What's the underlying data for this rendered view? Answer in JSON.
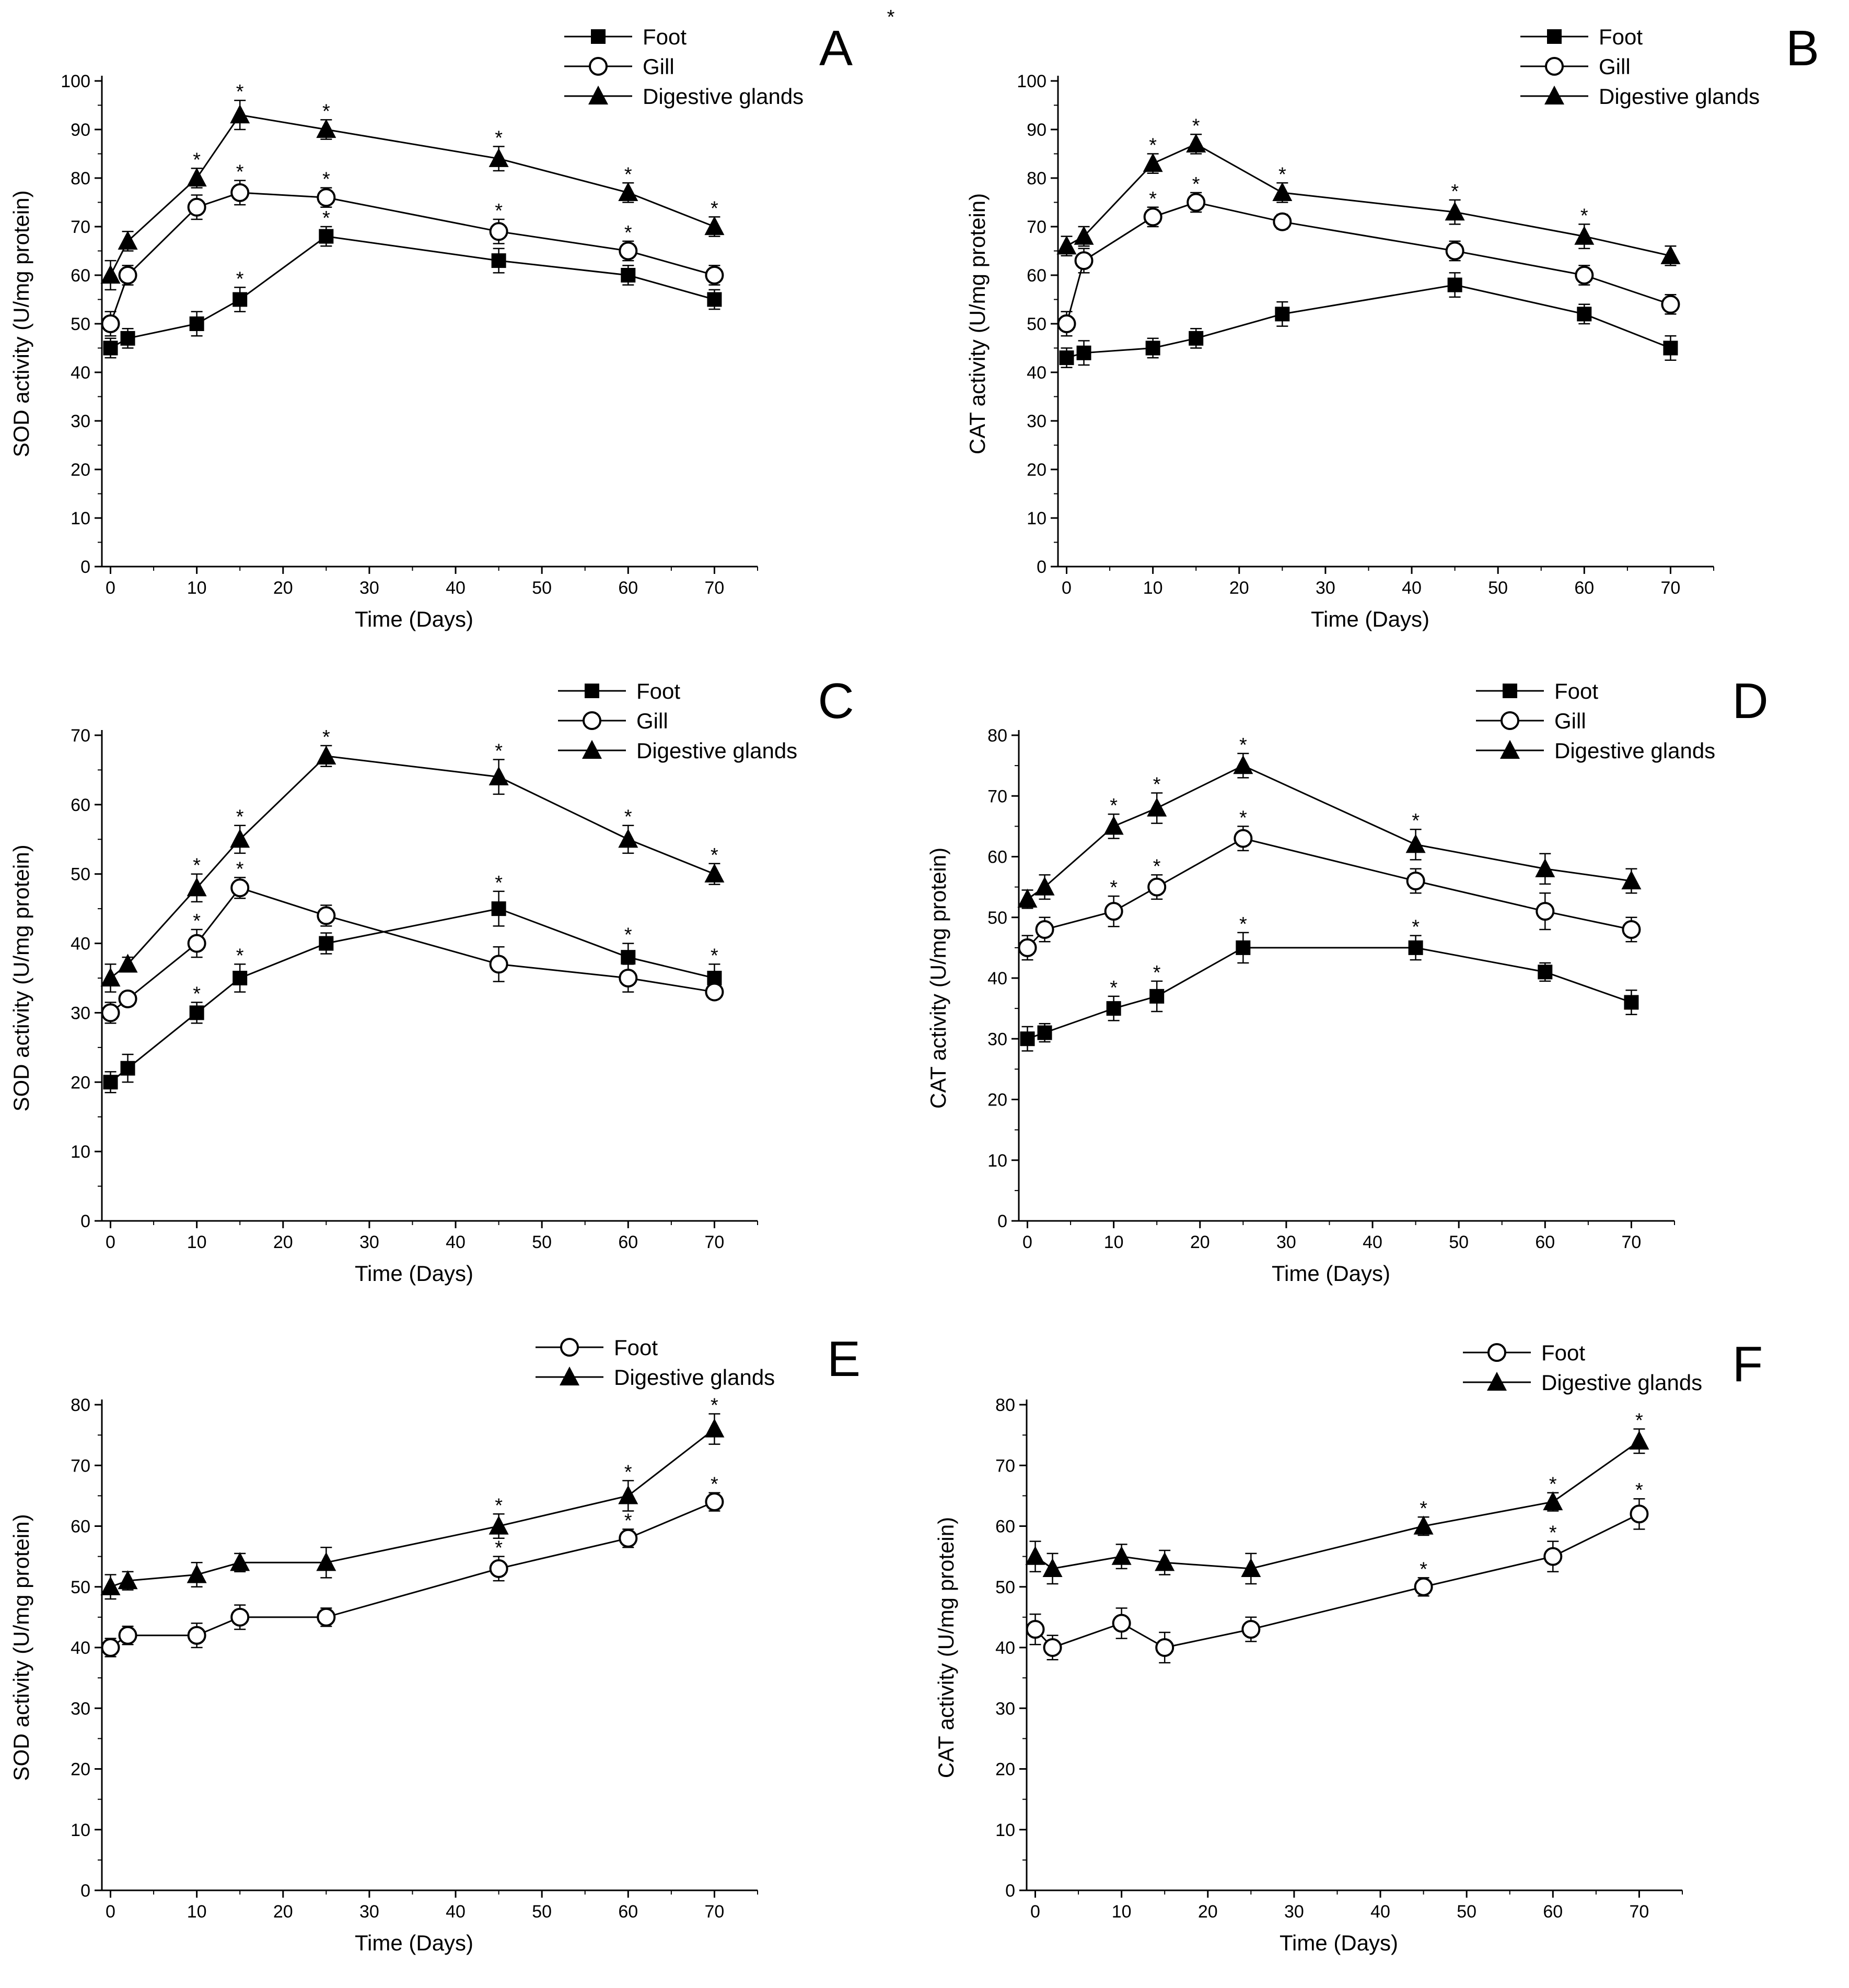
{
  "chart_data": [
    {
      "type": "line",
      "panel_label": "A",
      "extra_marks": [
        "*"
      ],
      "xlabel": "Time (Days)",
      "ylabel": "SOD activity (U/mg protein)",
      "xlim": [
        -1,
        75
      ],
      "ylim": [
        0,
        100
      ],
      "xticks": [
        0,
        10,
        20,
        30,
        40,
        50,
        60,
        70
      ],
      "yticks": [
        0,
        10,
        20,
        30,
        40,
        50,
        60,
        70,
        80,
        90,
        100
      ],
      "legend_position": "top-right",
      "x": [
        0,
        2,
        10,
        15,
        25,
        45,
        60,
        70
      ],
      "series": [
        {
          "name": "Foot",
          "marker": "square-filled",
          "values": [
            45,
            47,
            50,
            55,
            68,
            63,
            60,
            55
          ],
          "errors": [
            2,
            2,
            2.5,
            2.5,
            2,
            2.5,
            2,
            2
          ],
          "sig": [
            0,
            0,
            0,
            1,
            1,
            0,
            0,
            0
          ]
        },
        {
          "name": "Gill",
          "marker": "circle-open",
          "values": [
            50,
            60,
            74,
            77,
            76,
            69,
            65,
            60
          ],
          "errors": [
            2.5,
            2,
            2.5,
            2.5,
            2,
            2.5,
            2,
            2
          ],
          "sig": [
            0,
            0,
            0,
            1,
            1,
            1,
            1,
            0
          ]
        },
        {
          "name": "Digestive glands",
          "marker": "triangle-filled",
          "values": [
            60,
            67,
            80,
            93,
            90,
            84,
            77,
            70
          ],
          "errors": [
            3,
            2,
            2,
            3,
            2,
            2.5,
            2,
            2
          ],
          "sig": [
            0,
            0,
            1,
            1,
            1,
            1,
            1,
            1
          ]
        }
      ]
    },
    {
      "type": "line",
      "panel_label": "B",
      "xlabel": "Time (Days)",
      "ylabel": "CAT activity (U/mg protein)",
      "xlim": [
        -1,
        75
      ],
      "ylim": [
        0,
        100
      ],
      "xticks": [
        0,
        10,
        20,
        30,
        40,
        50,
        60,
        70
      ],
      "yticks": [
        0,
        10,
        20,
        30,
        40,
        50,
        60,
        70,
        80,
        90,
        100
      ],
      "legend_position": "top-right",
      "x": [
        0,
        2,
        10,
        15,
        25,
        45,
        60,
        70
      ],
      "series": [
        {
          "name": "Foot",
          "marker": "square-filled",
          "values": [
            43,
            44,
            45,
            47,
            52,
            58,
            52,
            45
          ],
          "errors": [
            2,
            2.5,
            2,
            2,
            2.5,
            2.5,
            2,
            2.5
          ],
          "sig": [
            0,
            0,
            0,
            0,
            0,
            0,
            0,
            0
          ]
        },
        {
          "name": "Gill",
          "marker": "circle-open",
          "values": [
            50,
            63,
            72,
            75,
            71,
            65,
            60,
            54
          ],
          "errors": [
            2.5,
            2.5,
            2,
            2,
            1.5,
            2,
            2,
            2
          ],
          "sig": [
            0,
            0,
            1,
            1,
            0,
            0,
            0,
            0
          ]
        },
        {
          "name": "Digestive glands",
          "marker": "triangle-filled",
          "values": [
            66,
            68,
            83,
            87,
            77,
            73,
            68,
            64
          ],
          "errors": [
            2,
            2,
            2,
            2,
            2,
            2.5,
            2.5,
            2
          ],
          "sig": [
            0,
            0,
            1,
            1,
            1,
            1,
            1,
            0
          ]
        }
      ]
    },
    {
      "type": "line",
      "panel_label": "C",
      "xlabel": "Time (Days)",
      "ylabel": "SOD activity (U/mg protein)",
      "xlim": [
        -1,
        75
      ],
      "ylim": [
        0,
        70
      ],
      "xticks": [
        0,
        10,
        20,
        30,
        40,
        50,
        60,
        70
      ],
      "yticks": [
        0,
        10,
        20,
        30,
        40,
        50,
        60,
        70
      ],
      "legend_position": "top-right",
      "x": [
        0,
        2,
        10,
        15,
        25,
        45,
        60,
        70
      ],
      "series": [
        {
          "name": "Foot",
          "marker": "square-filled",
          "values": [
            20,
            22,
            30,
            35,
            40,
            45,
            38,
            35
          ],
          "errors": [
            1.5,
            2,
            1.5,
            2,
            1.5,
            2.5,
            2,
            2
          ],
          "sig": [
            0,
            0,
            1,
            1,
            0,
            1,
            1,
            1
          ]
        },
        {
          "name": "Gill",
          "marker": "circle-open",
          "values": [
            30,
            32,
            40,
            48,
            44,
            37,
            35,
            33
          ],
          "errors": [
            1.5,
            1,
            2,
            1.5,
            1.5,
            2.5,
            2,
            1
          ],
          "sig": [
            0,
            0,
            1,
            1,
            0,
            0,
            0,
            0
          ]
        },
        {
          "name": "Digestive glands",
          "marker": "triangle-filled",
          "values": [
            35,
            37,
            48,
            55,
            67,
            64,
            55,
            50
          ],
          "errors": [
            2,
            1,
            2,
            2,
            1.5,
            2.5,
            2,
            1.5
          ],
          "sig": [
            0,
            0,
            1,
            1,
            1,
            1,
            1,
            1
          ]
        }
      ]
    },
    {
      "type": "line",
      "panel_label": "D",
      "xlabel": "Time (Days)",
      "ylabel": "CAT activity (U/mg protein)",
      "xlim": [
        -1,
        75
      ],
      "ylim": [
        0,
        80
      ],
      "xticks": [
        0,
        10,
        20,
        30,
        40,
        50,
        60,
        70
      ],
      "yticks": [
        0,
        10,
        20,
        30,
        40,
        50,
        60,
        70,
        80
      ],
      "legend_position": "top-right",
      "x": [
        0,
        2,
        10,
        15,
        25,
        45,
        60,
        70
      ],
      "series": [
        {
          "name": "Foot",
          "marker": "square-filled",
          "values": [
            30,
            31,
            35,
            37,
            45,
            45,
            41,
            36
          ],
          "errors": [
            2,
            1.5,
            2,
            2.5,
            2.5,
            2,
            1.5,
            2
          ],
          "sig": [
            0,
            0,
            1,
            1,
            1,
            1,
            0,
            0
          ]
        },
        {
          "name": "Gill",
          "marker": "circle-open",
          "values": [
            45,
            48,
            51,
            55,
            63,
            56,
            51,
            48
          ],
          "errors": [
            2,
            2,
            2.5,
            2,
            2,
            2,
            3,
            2
          ],
          "sig": [
            0,
            0,
            1,
            1,
            1,
            0,
            0,
            0
          ]
        },
        {
          "name": "Digestive glands",
          "marker": "triangle-filled",
          "values": [
            53,
            55,
            65,
            68,
            75,
            62,
            58,
            56
          ],
          "errors": [
            1.5,
            2,
            2,
            2.5,
            2,
            2.5,
            2.5,
            2
          ],
          "sig": [
            0,
            0,
            1,
            1,
            1,
            1,
            0,
            0
          ]
        }
      ]
    },
    {
      "type": "line",
      "panel_label": "E",
      "xlabel": "Time (Days)",
      "ylabel": "SOD activity (U/mg protein)",
      "xlim": [
        -1,
        75
      ],
      "ylim": [
        0,
        80
      ],
      "xticks": [
        0,
        10,
        20,
        30,
        40,
        50,
        60,
        70
      ],
      "yticks": [
        0,
        10,
        20,
        30,
        40,
        50,
        60,
        70,
        80
      ],
      "legend_position": "top-right",
      "x": [
        0,
        2,
        10,
        15,
        25,
        45,
        60,
        70
      ],
      "series": [
        {
          "name": "Foot",
          "marker": "circle-open",
          "values": [
            40,
            42,
            42,
            45,
            45,
            53,
            58,
            64
          ],
          "errors": [
            1.5,
            1.5,
            2,
            2,
            1.5,
            2,
            1.5,
            1.5
          ],
          "sig": [
            0,
            0,
            0,
            0,
            0,
            1,
            1,
            1
          ]
        },
        {
          "name": "Digestive glands",
          "marker": "triangle-filled",
          "values": [
            50,
            51,
            52,
            54,
            54,
            60,
            65,
            76
          ],
          "errors": [
            2,
            1.5,
            2,
            1.5,
            2.5,
            2,
            2.5,
            2.5
          ],
          "sig": [
            0,
            0,
            0,
            0,
            0,
            1,
            1,
            1
          ]
        }
      ]
    },
    {
      "type": "line",
      "panel_label": "F",
      "xlabel": "Time (Days)",
      "ylabel": "CAT activity (U/mg protein)",
      "xlim": [
        -1,
        75
      ],
      "ylim": [
        0,
        80
      ],
      "xticks": [
        0,
        10,
        20,
        30,
        40,
        50,
        60,
        70
      ],
      "yticks": [
        0,
        10,
        20,
        30,
        40,
        50,
        60,
        70,
        80
      ],
      "legend_position": "top-right",
      "x": [
        0,
        2,
        10,
        15,
        25,
        45,
        60,
        70
      ],
      "series": [
        {
          "name": "Foot",
          "marker": "circle-open",
          "values": [
            43,
            40,
            44,
            40,
            43,
            50,
            55,
            62
          ],
          "errors": [
            2.5,
            2,
            2.5,
            2.5,
            2,
            1.5,
            2.5,
            2.5
          ],
          "sig": [
            0,
            0,
            0,
            0,
            0,
            1,
            1,
            1
          ]
        },
        {
          "name": "Digestive glands",
          "marker": "triangle-filled",
          "values": [
            55,
            53,
            55,
            54,
            53,
            60,
            64,
            74
          ],
          "errors": [
            2.5,
            2.5,
            2,
            2,
            2.5,
            1.5,
            1.5,
            2
          ],
          "sig": [
            0,
            0,
            0,
            0,
            0,
            1,
            1,
            1
          ]
        }
      ]
    }
  ]
}
